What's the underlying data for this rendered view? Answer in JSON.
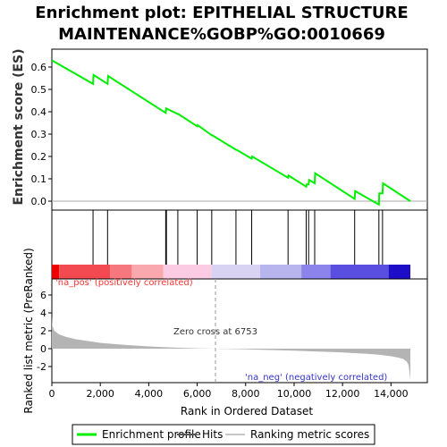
{
  "chart_data": {
    "type": "line",
    "title": [
      "Enrichment plot: EPITHELIAL STRUCTURE",
      "MAINTENANCE%GOBP%GO:0010669"
    ],
    "es_panel": {
      "ylabel": "Enrichment score (ES)",
      "ylim": [
        -0.04,
        0.68
      ],
      "yticks": [
        0.0,
        0.1,
        0.2,
        0.3,
        0.4,
        0.5,
        0.6
      ],
      "ytick_labels": [
        "0.0",
        "0.1",
        "0.2",
        "0.3",
        "0.4",
        "0.5",
        "0.6"
      ],
      "series": [
        {
          "name": "Enrichment profile",
          "color": "#00ee00",
          "x": [
            0,
            1700,
            1720,
            2300,
            2320,
            4700,
            4720,
            5200,
            5220,
            6000,
            6020,
            6600,
            6620,
            7600,
            7620,
            8250,
            8270,
            9750,
            9770,
            10500,
            10520,
            10600,
            10620,
            10850,
            10870,
            12500,
            12520,
            13500,
            13520,
            13650,
            13670,
            14800
          ],
          "y": [
            0.63,
            0.525,
            0.565,
            0.525,
            0.56,
            0.395,
            0.415,
            0.39,
            0.39,
            0.335,
            0.34,
            0.295,
            0.295,
            0.23,
            0.23,
            0.19,
            0.2,
            0.105,
            0.115,
            0.065,
            0.075,
            0.075,
            0.095,
            0.08,
            0.125,
            0.01,
            0.045,
            -0.015,
            0.035,
            0.035,
            0.08,
            0.0
          ]
        }
      ]
    },
    "hits": {
      "name": "Hits",
      "positions": [
        1700,
        2300,
        4700,
        4730,
        5200,
        6000,
        6600,
        7600,
        8250,
        9750,
        10500,
        10600,
        10850,
        12500,
        13500,
        13650
      ]
    },
    "colorbar": {
      "segments": [
        {
          "from": 0,
          "to": 300,
          "color": "#ef0000"
        },
        {
          "from": 300,
          "to": 2400,
          "color": "#f24a50"
        },
        {
          "from": 2400,
          "to": 3300,
          "color": "#f6787e"
        },
        {
          "from": 3300,
          "to": 4600,
          "color": "#f9a8ad"
        },
        {
          "from": 4600,
          "to": 6600,
          "color": "#fbcbe4"
        },
        {
          "from": 6600,
          "to": 8600,
          "color": "#d8d2f3"
        },
        {
          "from": 8600,
          "to": 10300,
          "color": "#b8b4ee"
        },
        {
          "from": 10300,
          "to": 11500,
          "color": "#8c84ea"
        },
        {
          "from": 11500,
          "to": 13900,
          "color": "#5a4ee0"
        },
        {
          "from": 13900,
          "to": 14800,
          "color": "#1e0dc6"
        }
      ]
    },
    "metric_panel": {
      "ylabel": "Ranked list metric (PreRanked)",
      "xlabel": "Rank in Ordered Dataset",
      "xlim": [
        0,
        15500
      ],
      "xticks": [
        0,
        2000,
        4000,
        6000,
        8000,
        10000,
        12000,
        14000
      ],
      "xtick_labels": [
        "0",
        "2,000",
        "4,000",
        "6,000",
        "8,000",
        "10,000",
        "12,000",
        "14,000"
      ],
      "ylim": [
        -3.8,
        7.8
      ],
      "yticks": [
        -2,
        0,
        2,
        4,
        6
      ],
      "ytick_labels": [
        "-2",
        "0",
        "2",
        "4",
        "6"
      ],
      "profile_x": [
        0,
        20,
        100,
        300,
        600,
        1000,
        1500,
        2000,
        3000,
        4000,
        5000,
        6000,
        6753,
        8000,
        9000,
        10000,
        11000,
        12000,
        13000,
        13500,
        14000,
        14300,
        14500,
        14650,
        14720,
        14760,
        14800
      ],
      "profile_y": [
        3.7,
        2.6,
        2.0,
        1.6,
        1.3,
        1.05,
        0.85,
        0.65,
        0.42,
        0.25,
        0.12,
        0.04,
        0.0,
        -0.08,
        -0.15,
        -0.22,
        -0.32,
        -0.42,
        -0.58,
        -0.68,
        -0.85,
        -1.0,
        -1.15,
        -1.45,
        -1.8,
        -2.5,
        -3.5
      ],
      "fill_color": "#b4b4b4",
      "zero_cross": 6753,
      "zero_cross_label": "Zero cross at 6753",
      "pos_label": "'na_pos' (positively correlated)",
      "pos_color": "#ff3333",
      "neg_label": "'na_neg' (negatively correlated)",
      "neg_color": "#3333cc"
    },
    "legend": {
      "placement": "bottom",
      "items": [
        {
          "name": "Enrichment profile",
          "color": "#00ee00"
        },
        {
          "name": "Hits",
          "color": "#555555"
        },
        {
          "name": "Ranking metric scores",
          "color": "#c8c8c8"
        }
      ]
    }
  }
}
